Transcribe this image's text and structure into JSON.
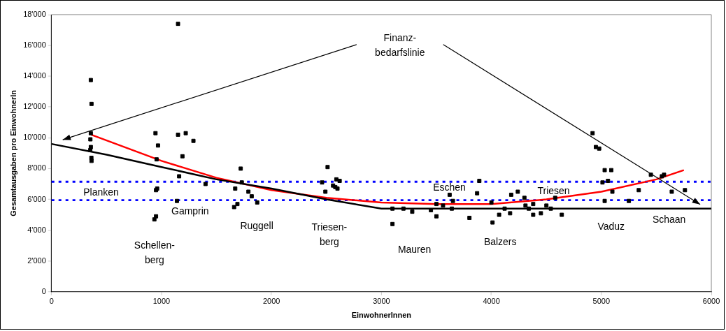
{
  "chart_data": {
    "type": "scatter",
    "xlabel": "EinwohnerInnen",
    "ylabel": "Gesamtausgaben pro EinwohnerIn",
    "xlim": [
      0,
      6000
    ],
    "xticks": [
      0,
      1000,
      2000,
      3000,
      4000,
      5000,
      6000
    ],
    "ylim": [
      0,
      18000
    ],
    "yticks": [
      0,
      {
        "value": 2000,
        "label": "2'000"
      },
      {
        "value": 4000,
        "label": "4'000"
      },
      {
        "value": 6000,
        "label": "6'000"
      },
      {
        "value": 8000,
        "label": "8'000"
      },
      {
        "value": 10000,
        "label": "10'000"
      },
      {
        "value": 12000,
        "label": "12'000"
      },
      {
        "value": 14000,
        "label": "14'000"
      },
      {
        "value": 16000,
        "label": "16'000"
      },
      {
        "value": 18000,
        "label": "18'000"
      }
    ],
    "grid": false,
    "legend": false,
    "series": [
      {
        "type": "scatter",
        "marker": "square",
        "color": "#000000",
        "x": [
          357,
          363,
          357,
          353,
          357,
          352,
          362,
          363,
          945,
          968,
          955,
          960,
          950,
          935,
          950,
          1150,
          1150,
          1220,
          1290,
          1190,
          1160,
          1140,
          1400,
          1720,
          1670,
          1730,
          1790,
          1820,
          1870,
          1660,
          1690,
          2510,
          2460,
          2490,
          2560,
          2590,
          2620,
          2580,
          2600,
          3100,
          3100,
          3200,
          3280,
          3450,
          3500,
          3500,
          3560,
          3620,
          3650,
          3800,
          3870,
          3890,
          3640,
          4000,
          4010,
          4070,
          4120,
          4170,
          4180,
          4240,
          4300,
          4310,
          4340,
          4380,
          4380,
          4450,
          4500,
          4540,
          4580,
          4640,
          4920,
          4950,
          4980,
          5030,
          5090,
          5010,
          5060,
          5100,
          5030,
          5250,
          5340,
          5450,
          5550,
          5570,
          5640,
          5760
        ],
        "values": [
          13750,
          12200,
          10300,
          9900,
          9400,
          9200,
          8700,
          8500,
          10300,
          9500,
          8600,
          6700,
          6600,
          4700,
          4900,
          17400,
          10200,
          10300,
          9800,
          8800,
          7500,
          5900,
          7000,
          8000,
          6700,
          7100,
          6500,
          6200,
          5800,
          5500,
          5700,
          8100,
          7100,
          6500,
          6900,
          7300,
          7200,
          6800,
          6700,
          5400,
          4400,
          5400,
          5200,
          5300,
          4900,
          5700,
          5600,
          6300,
          5900,
          4800,
          6400,
          7200,
          5400,
          5800,
          4500,
          5000,
          5400,
          5100,
          6300,
          6500,
          6100,
          5600,
          5400,
          5000,
          5700,
          5100,
          5600,
          5400,
          6100,
          5000,
          10300,
          9400,
          9300,
          7900,
          7900,
          7100,
          7200,
          6500,
          5900,
          5900,
          6600,
          7600,
          7500,
          7600,
          6500,
          6600
        ]
      },
      {
        "type": "line",
        "marker": "none",
        "color": "#000000",
        "x": [
          0,
          500,
          1000,
          1500,
          2000,
          2500,
          3000,
          6000
        ],
        "values": [
          9600,
          8900,
          8100,
          7300,
          6700,
          6000,
          5400,
          5400
        ]
      },
      {
        "type": "line",
        "marker": "none",
        "color": "#ff0000",
        "x": [
          360,
          1000,
          1500,
          2000,
          2500,
          3000,
          3500,
          4000,
          4500,
          5000,
          5500,
          5750
        ],
        "values": [
          10200,
          8500,
          7400,
          6600,
          6100,
          5800,
          5700,
          5700,
          6000,
          6500,
          7300,
          7900
        ]
      }
    ],
    "ref_lines": [
      {
        "axis": "y",
        "value": 7150,
        "color": "#0000ff",
        "line_style": "dotted"
      },
      {
        "axis": "y",
        "value": 5950,
        "color": "#0000ff",
        "line_style": "dotted"
      }
    ],
    "annotations": [
      "Finanz-\nbedarfslinie",
      "Planken",
      "Schellen-\nberg",
      "Gamprin",
      "Ruggell",
      "Triesen-\nberg",
      "Mauren",
      "Eschen",
      "Balzers",
      "Triesen",
      "Vaduz",
      "Schaan"
    ]
  }
}
